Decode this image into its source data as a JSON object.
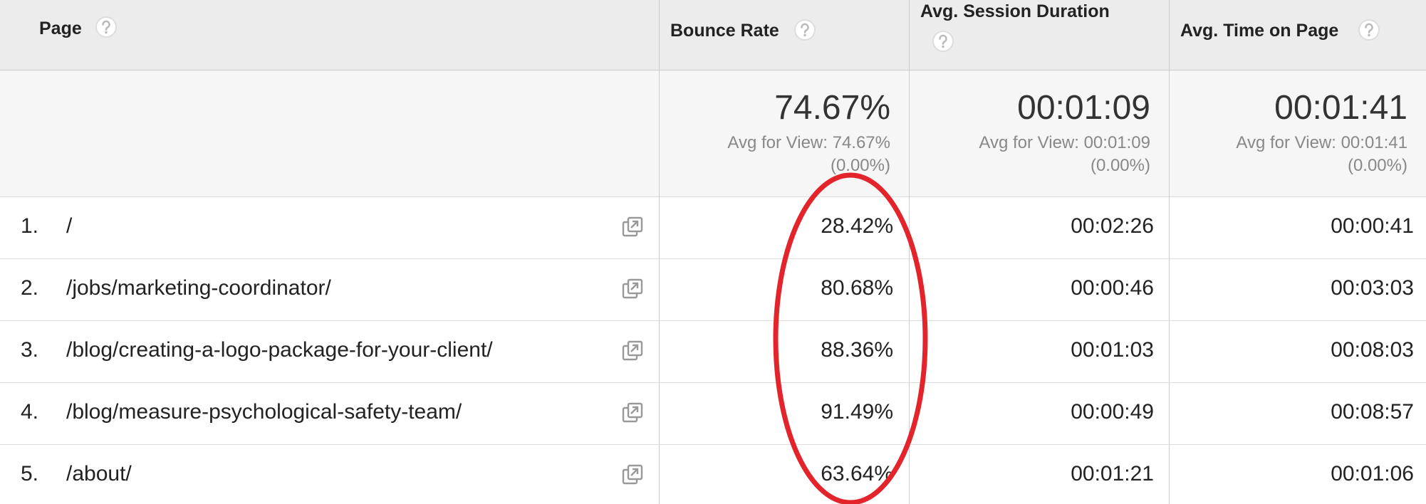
{
  "header": {
    "page": "Page",
    "bounce_rate": "Bounce Rate",
    "session_duration": "Avg. Session Duration",
    "time_on_page": "Avg. Time on Page"
  },
  "summary": {
    "bounce_rate": {
      "value": "74.67%",
      "avg": "Avg for View: 74.67%",
      "change": "(0.00%)"
    },
    "session_duration": {
      "value": "00:01:09",
      "avg": "Avg for View: 00:01:09",
      "change": "(0.00%)"
    },
    "time_on_page": {
      "value": "00:01:41",
      "avg": "Avg for View: 00:01:41",
      "change": "(0.00%)"
    }
  },
  "rows": [
    {
      "rank": "1.",
      "page": "/",
      "bounce_rate": "28.42%",
      "session_duration": "00:02:26",
      "time_on_page": "00:00:41"
    },
    {
      "rank": "2.",
      "page": "/jobs/marketing-coordinator/",
      "bounce_rate": "80.68%",
      "session_duration": "00:00:46",
      "time_on_page": "00:03:03"
    },
    {
      "rank": "3.",
      "page": "/blog/creating-a-logo-package-for-your-client/",
      "bounce_rate": "88.36%",
      "session_duration": "00:01:03",
      "time_on_page": "00:08:03"
    },
    {
      "rank": "4.",
      "page": "/blog/measure-psychological-safety-team/",
      "bounce_rate": "91.49%",
      "session_duration": "00:00:49",
      "time_on_page": "00:08:57"
    },
    {
      "rank": "5.",
      "page": "/about/",
      "bounce_rate": "63.64%",
      "session_duration": "00:01:21",
      "time_on_page": "00:01:06"
    }
  ]
}
